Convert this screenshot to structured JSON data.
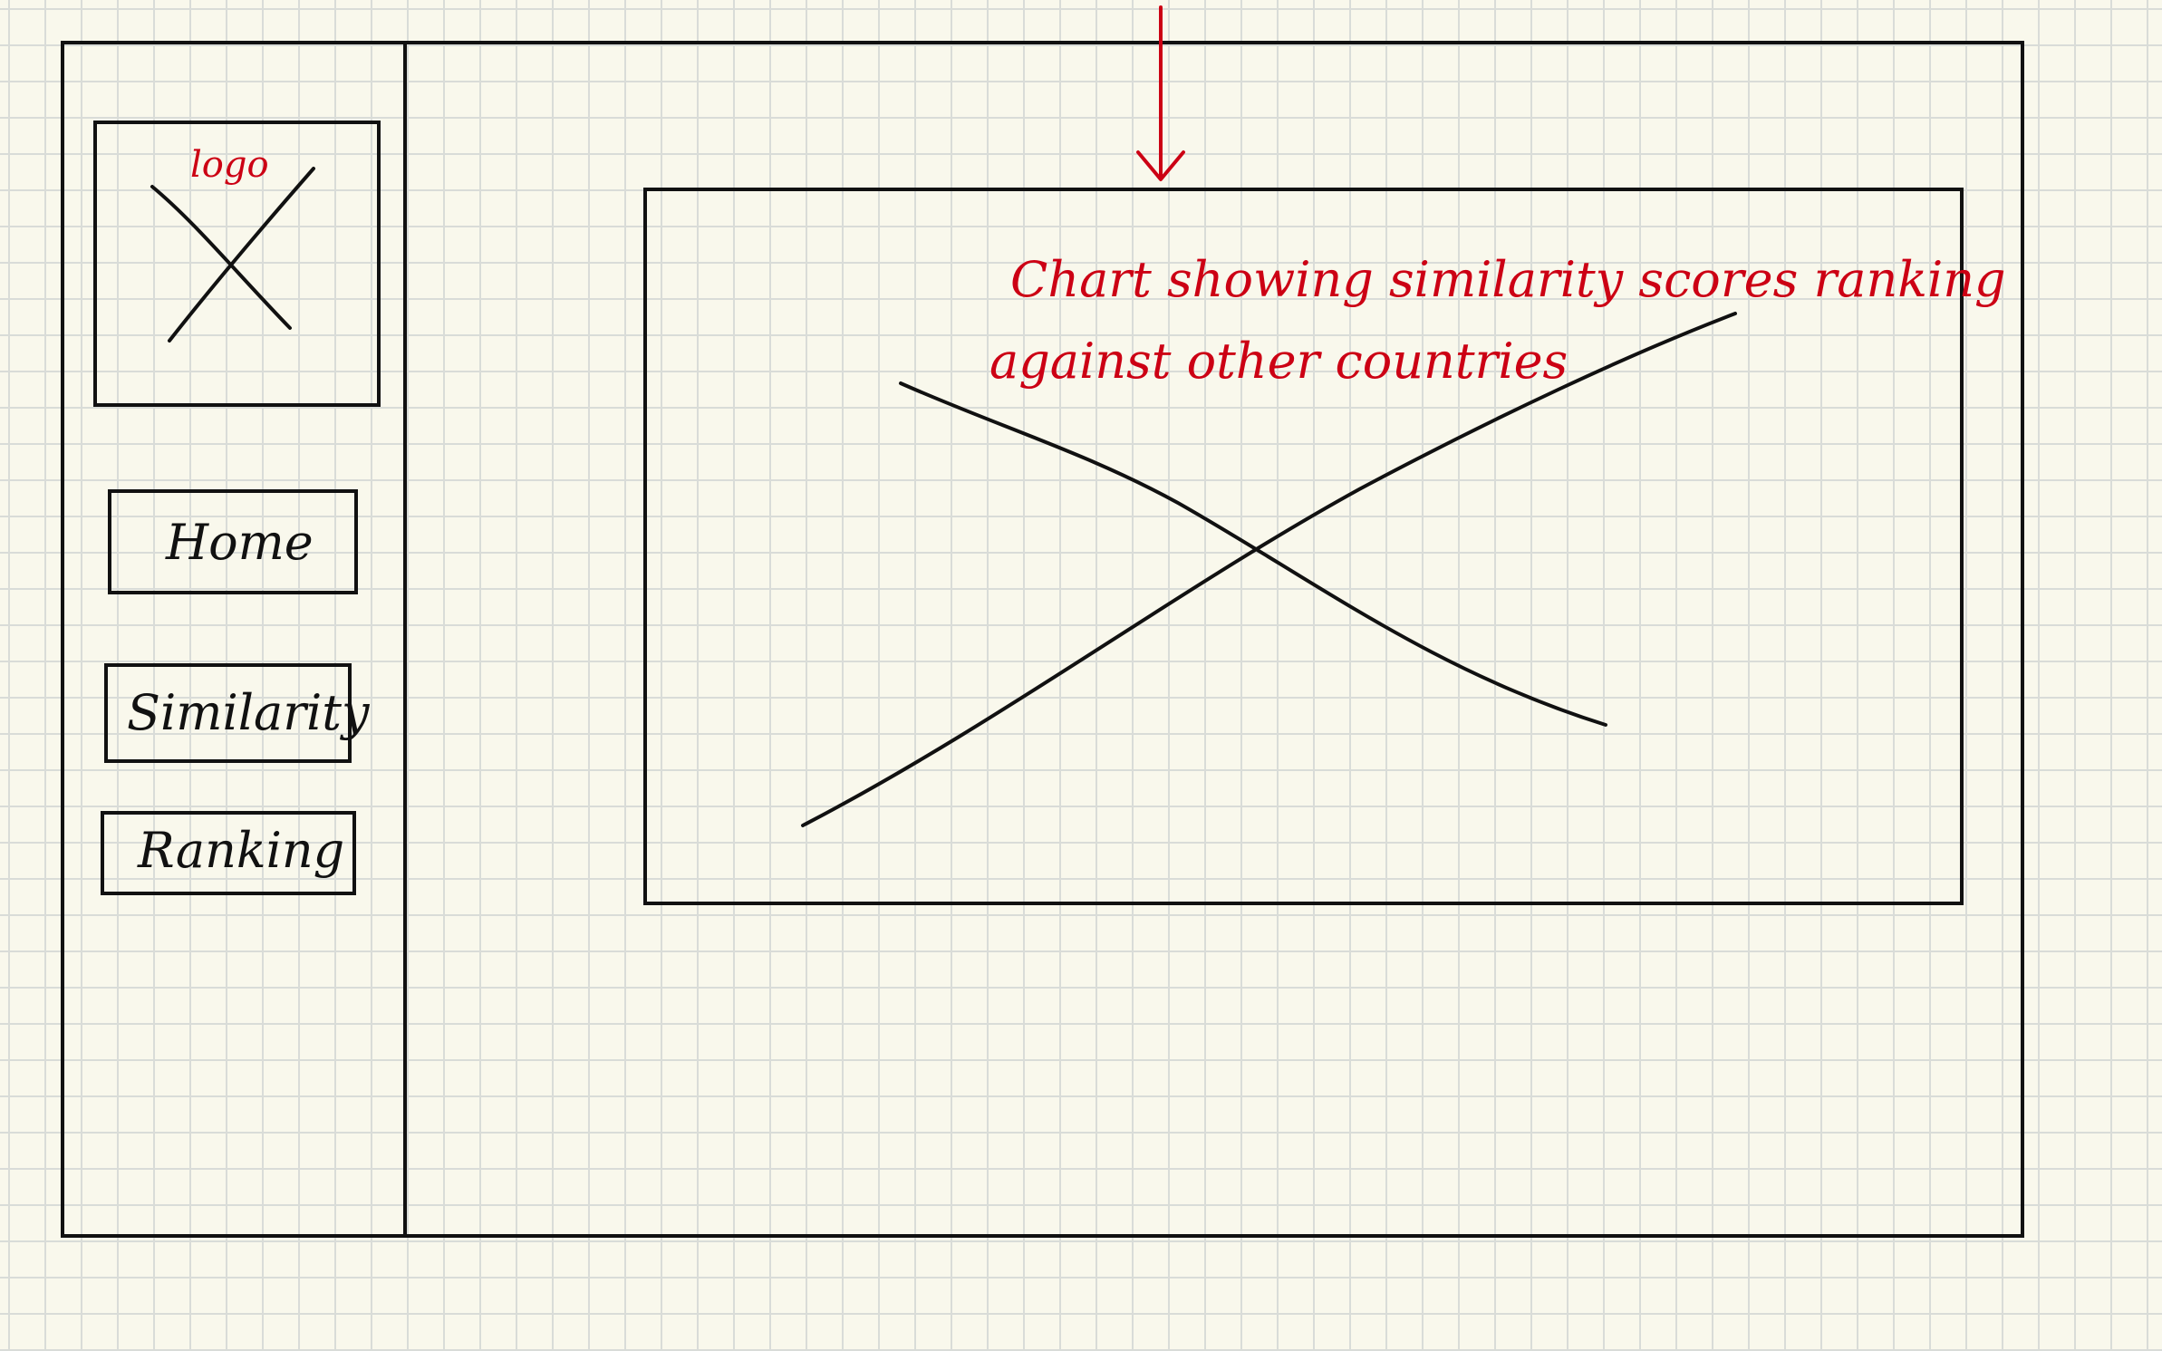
{
  "sidebar": {
    "logo_label": "logo",
    "nav": [
      {
        "label": "Home"
      },
      {
        "label": "Similarity"
      },
      {
        "label": "Ranking"
      }
    ]
  },
  "main": {
    "chart_annotation": {
      "line1": "Chart showing similarity scores ranking",
      "line2": "against other countries"
    }
  },
  "colors": {
    "ink": "#111111",
    "annotation": "#cc0014",
    "paper": "#f9f8ec",
    "grid": "#d9dcd8"
  }
}
